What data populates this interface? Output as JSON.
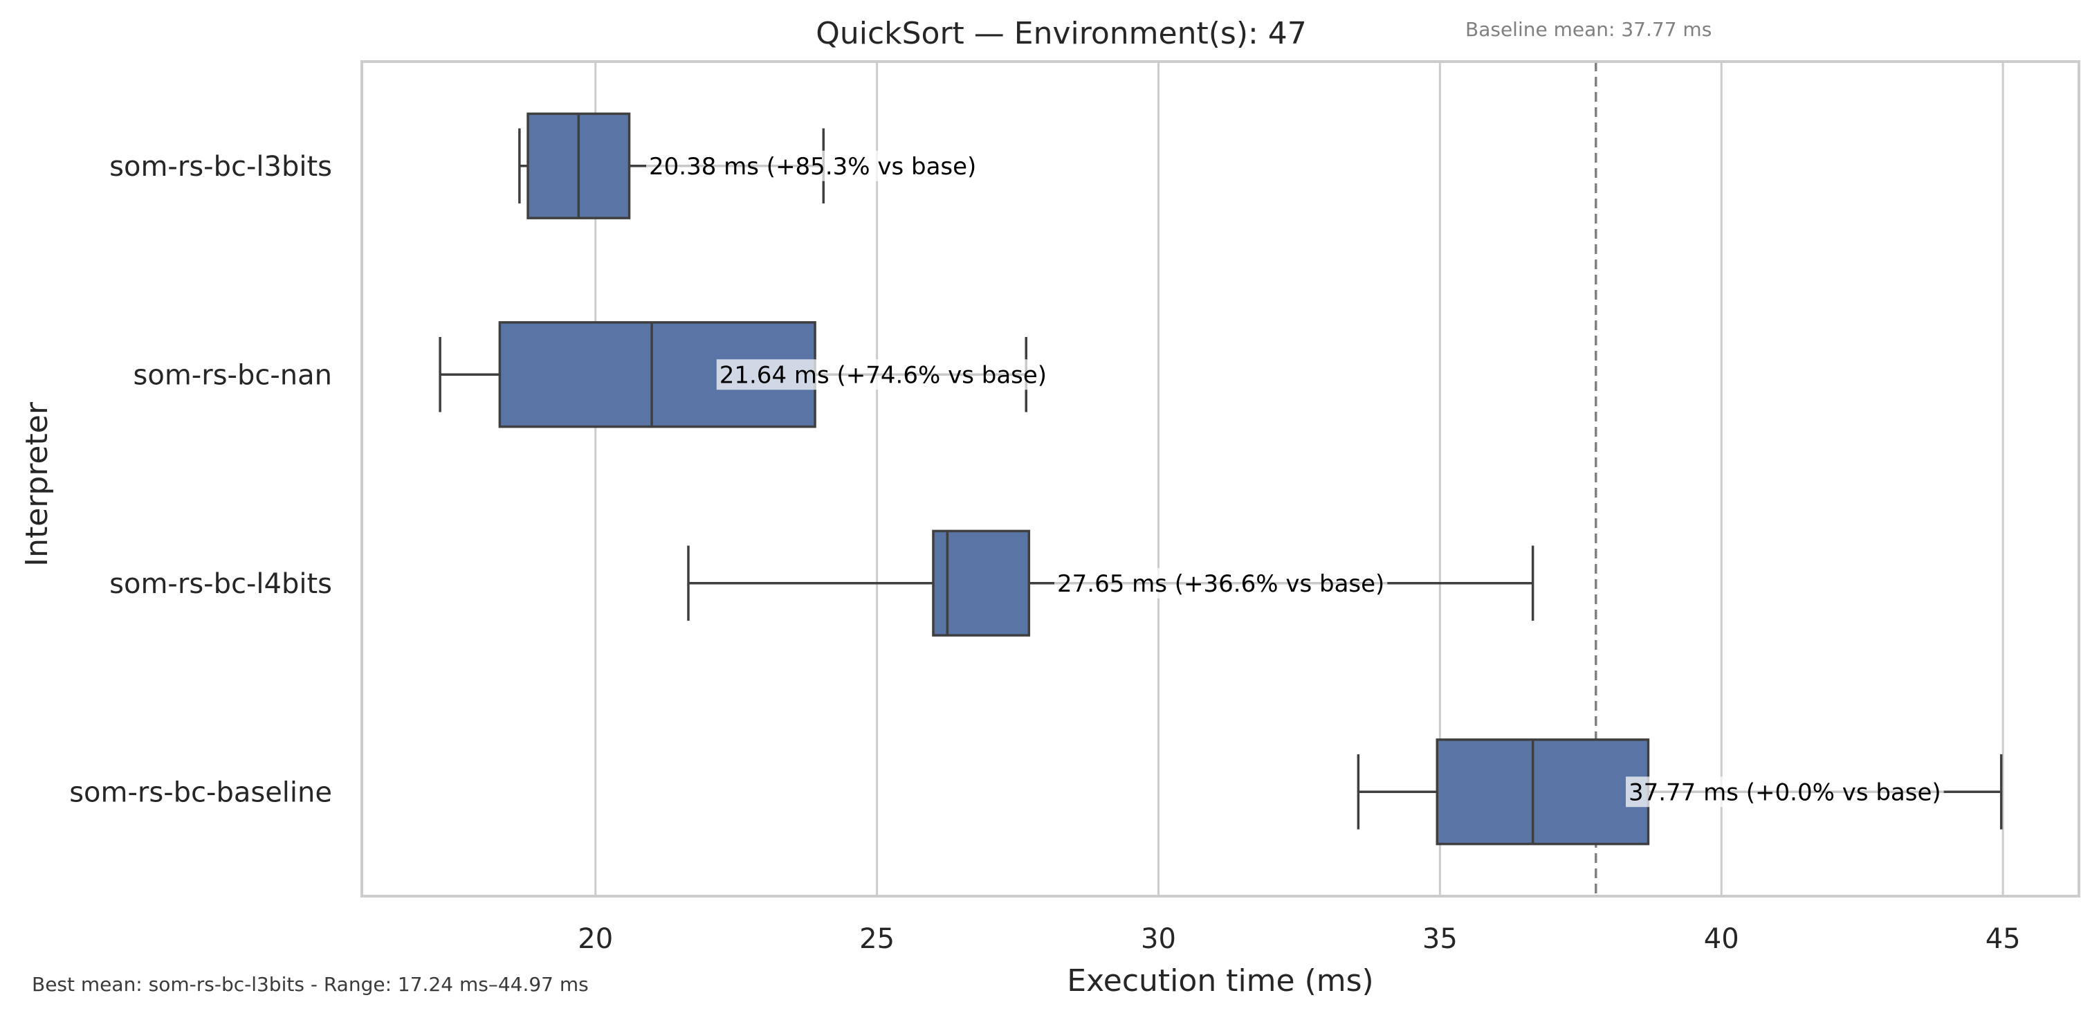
{
  "chart_data": {
    "type": "boxplot",
    "orientation": "horizontal",
    "title": "QuickSort — Environment(s): 47",
    "xlabel": "Execution time (ms)",
    "ylabel": "Interpreter",
    "xlim": [
      15.85,
      46.35
    ],
    "xticks": [
      20,
      25,
      30,
      35,
      40,
      45
    ],
    "grid": "vertical",
    "box_color": "#5875a6",
    "baseline": {
      "value": 37.77,
      "label": "Baseline mean: 37.77 ms",
      "style": "dashed",
      "color": "#808080"
    },
    "series": [
      {
        "category": "som-rs-bc-l3bits",
        "whisker_low": 18.65,
        "q1": 18.8,
        "median": 19.7,
        "q3": 20.6,
        "whisker_high": 24.05,
        "annotation": "20.38 ms  (+85.3% vs base)",
        "annotation_x": 20.95
      },
      {
        "category": "som-rs-bc-nan",
        "whisker_low": 17.24,
        "q1": 18.3,
        "median": 21.0,
        "q3": 23.9,
        "whisker_high": 27.65,
        "annotation": "21.64 ms  (+74.6% vs base)",
        "annotation_x": 22.2
      },
      {
        "category": "som-rs-bc-l4bits",
        "whisker_low": 21.65,
        "q1": 26.0,
        "median": 26.25,
        "q3": 27.7,
        "whisker_high": 36.65,
        "annotation": "27.65 ms  (+36.6% vs base)",
        "annotation_x": 28.2
      },
      {
        "category": "som-rs-bc-baseline",
        "whisker_low": 33.55,
        "q1": 34.95,
        "median": 36.65,
        "q3": 38.7,
        "whisker_high": 44.97,
        "annotation": "37.77 ms  (+0.0% vs base)",
        "annotation_x": 38.35
      }
    ]
  },
  "footer": "Best mean: som-rs-bc-l3bits - Range: 17.24 ms–44.97 ms"
}
